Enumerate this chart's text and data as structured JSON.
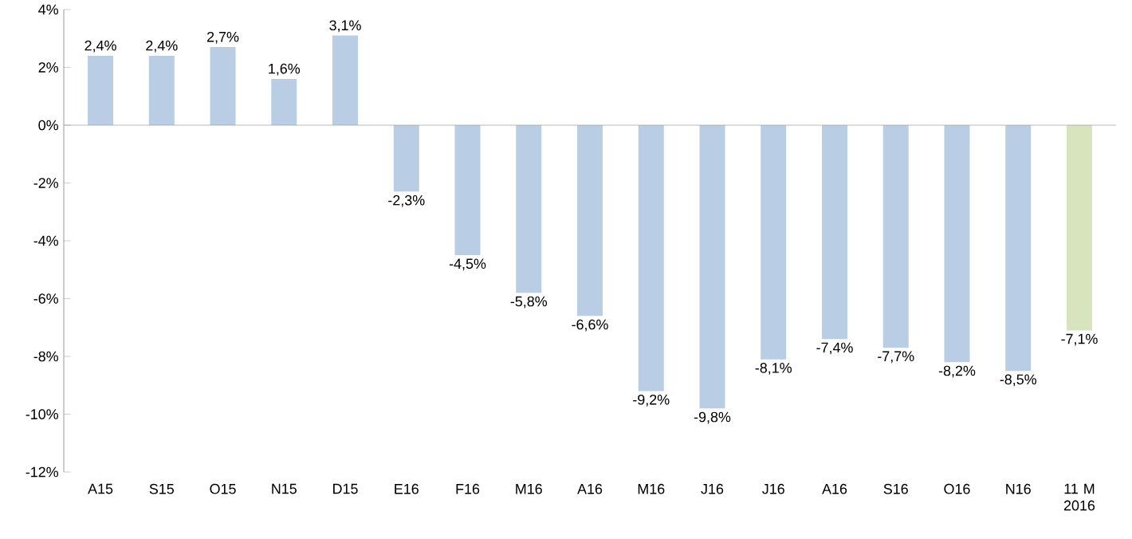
{
  "chart_data": {
    "type": "bar",
    "categories": [
      "A15",
      "S15",
      "O15",
      "N15",
      "D15",
      "E16",
      "F16",
      "M16",
      "A16",
      "M16",
      "J16",
      "J16",
      "A16",
      "S16",
      "O16",
      "N16",
      "11 M 2016"
    ],
    "values": [
      2.4,
      2.4,
      2.7,
      1.6,
      3.1,
      -2.3,
      -4.5,
      -5.8,
      -6.6,
      -9.2,
      -9.8,
      -8.1,
      -7.4,
      -7.7,
      -8.2,
      -8.5,
      -7.1
    ],
    "value_labels": [
      "2,4%",
      "2,4%",
      "2,7%",
      "1,6%",
      "3,1%",
      "-2,3%",
      "-4,5%",
      "-5,8%",
      "-6,6%",
      "-9,2%",
      "-9,8%",
      "-8,1%",
      "-7,4%",
      "-7,7%",
      "-8,2%",
      "-8,5%",
      "-7,1%"
    ],
    "colors": [
      "#b9cde5",
      "#b9cde5",
      "#b9cde5",
      "#b9cde5",
      "#b9cde5",
      "#b9cde5",
      "#b9cde5",
      "#b9cde5",
      "#b9cde5",
      "#b9cde5",
      "#b9cde5",
      "#b9cde5",
      "#b9cde5",
      "#b9cde5",
      "#b9cde5",
      "#b9cde5",
      "#d7e4bd"
    ],
    "ylim": [
      -12,
      4
    ],
    "yticks": [
      {
        "value": -12,
        "label": "-12%"
      },
      {
        "value": -10,
        "label": "-10%"
      },
      {
        "value": -8,
        "label": "-8%"
      },
      {
        "value": -6,
        "label": "-6%"
      },
      {
        "value": -4,
        "label": "-4%"
      },
      {
        "value": -2,
        "label": "-2%"
      },
      {
        "value": 0,
        "label": "0%"
      },
      {
        "value": 2,
        "label": "2%"
      },
      {
        "value": 4,
        "label": "4%"
      }
    ],
    "legend": false
  }
}
